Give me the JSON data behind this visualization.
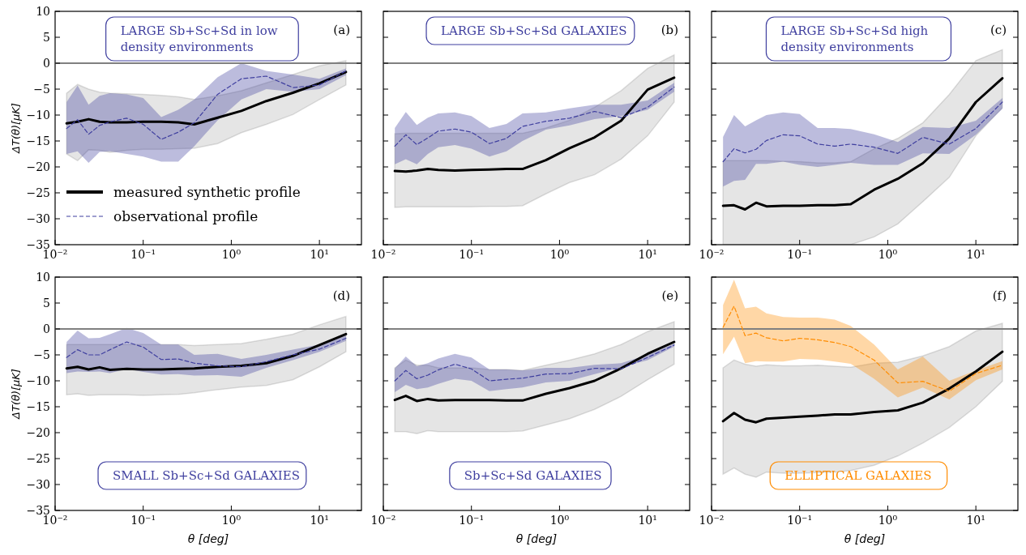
{
  "chart_data": [
    {
      "type": "line",
      "log": "x",
      "title": "LARGE Sb+Sc+Sd in low density environments",
      "annotations": [
        "(a)"
      ],
      "ylabel": "ΔT(θ)[μK]",
      "legend": "bottom left",
      "x": [
        0.0135,
        0.018,
        0.024,
        0.032,
        0.042,
        0.065,
        0.1,
        0.16,
        0.25,
        0.38,
        0.7,
        1.3,
        2.5,
        5,
        10,
        20
      ],
      "xlim": [
        0.01,
        30
      ],
      "xticks": [
        {
          "value": 0.01,
          "label": "10⁻²"
        },
        {
          "value": 0.1,
          "label": "10⁻¹"
        },
        {
          "value": 1,
          "label": "10⁰"
        },
        {
          "value": 10,
          "label": "10¹"
        }
      ],
      "ylim": [
        -35,
        10
      ],
      "yticks": [
        -35,
        -30,
        -25,
        -20,
        -15,
        -10,
        -5,
        0,
        5,
        10
      ],
      "ref_lines": [
        {
          "axis": "y",
          "value": 0,
          "color": "#808080"
        }
      ],
      "series": [
        {
          "name": "measured synthetic profile",
          "color": "#000000",
          "line_style": "solid",
          "values": [
            -11.6,
            -11.3,
            -10.8,
            -11.3,
            -11.4,
            -11.4,
            -11.3,
            -11.3,
            -11.4,
            -11.8,
            -10.5,
            -9.2,
            -7.3,
            -5.7,
            -3.9,
            -1.7
          ],
          "lower": [
            -17.5,
            -18.8,
            -16.7,
            -16.8,
            -17.2,
            -16.8,
            -16.6,
            -16.6,
            -16.5,
            -16.4,
            -15.5,
            -13.4,
            -11.8,
            -9.9,
            -7,
            -4.2
          ],
          "upper": [
            -5.8,
            -4.1,
            -5,
            -5.6,
            -5.8,
            -5.9,
            -6,
            -6.2,
            -6.5,
            -7,
            -6.3,
            -5.3,
            -3.8,
            -2.2,
            -0.5,
            0.5
          ]
        },
        {
          "name": "observational profile",
          "color": "#3f3f9f",
          "line_style": "dashed",
          "values": [
            -12.6,
            -10.9,
            -13.7,
            -12,
            -11.3,
            -10.6,
            -11.8,
            -14.7,
            -13.3,
            -11.5,
            -6,
            -3,
            -2.5,
            -4.7,
            -4.2,
            -1.5
          ],
          "lower": [
            -17.5,
            -17,
            -19.2,
            -17.1,
            -17,
            -17.5,
            -18,
            -19,
            -19,
            -16,
            -11,
            -7,
            -5,
            -5.5,
            -5,
            -2.3
          ],
          "upper": [
            -7.5,
            -4.3,
            -8,
            -6.3,
            -5.8,
            -6,
            -6.7,
            -10.4,
            -9,
            -7,
            -2.7,
            0,
            -1.5,
            -2.2,
            -3,
            -1
          ]
        }
      ]
    },
    {
      "type": "line",
      "log": "x",
      "title": "LARGE Sb+Sc+Sd GALAXIES",
      "annotations": [
        "(b)"
      ],
      "tick_labels": "x",
      "x": [
        0.0135,
        0.018,
        0.024,
        0.032,
        0.042,
        0.065,
        0.1,
        0.16,
        0.25,
        0.38,
        0.7,
        1.3,
        2.5,
        5,
        10,
        20
      ],
      "xlim": [
        0.01,
        30
      ],
      "xticks": [
        {
          "value": 0.01,
          "label": "10⁻²"
        },
        {
          "value": 0.1,
          "label": "10⁻¹"
        },
        {
          "value": 1,
          "label": "10⁰"
        },
        {
          "value": 10,
          "label": "10¹"
        }
      ],
      "ylim": [
        -35,
        10
      ],
      "yticks": [
        -35,
        -30,
        -25,
        -20,
        -15,
        -10,
        -5,
        0,
        5,
        10
      ],
      "ref_lines": [
        {
          "axis": "y",
          "value": 0,
          "color": "#808080"
        }
      ],
      "series": [
        {
          "color": "#000000",
          "line_style": "solid",
          "values": [
            -20.8,
            -20.9,
            -20.7,
            -20.4,
            -20.6,
            -20.7,
            -20.6,
            -20.5,
            -20.4,
            -20.4,
            -18.7,
            -16.4,
            -14.3,
            -11.1,
            -5.1,
            -2.8
          ],
          "lower": [
            -27.8,
            -27.7,
            -27.7,
            -27.7,
            -27.7,
            -27.7,
            -27.7,
            -27.6,
            -27.6,
            -27.5,
            -25.2,
            -23,
            -21.5,
            -18.5,
            -14,
            -7.5
          ],
          "upper": [
            -13.6,
            -13.5,
            -13.5,
            -13.5,
            -13.5,
            -13.5,
            -13.5,
            -13.5,
            -13.5,
            -13.5,
            -12.5,
            -11,
            -8.5,
            -5.3,
            -1,
            1.6
          ]
        },
        {
          "color": "#3f3f9f",
          "line_style": "dashed",
          "values": [
            -16,
            -13.8,
            -15.7,
            -14.4,
            -13.1,
            -12.7,
            -13.3,
            -15.5,
            -14.5,
            -12.2,
            -11.2,
            -10.6,
            -9.3,
            -10.5,
            -8.5,
            -4.6
          ],
          "lower": [
            -19.5,
            -18.5,
            -19.5,
            -17.5,
            -16.2,
            -15.8,
            -16.5,
            -18,
            -17,
            -15,
            -12.8,
            -12,
            -10.8,
            -10.2,
            -9,
            -5.5
          ],
          "upper": [
            -12.5,
            -9.4,
            -11.9,
            -10.5,
            -9.7,
            -9.5,
            -10.2,
            -12.5,
            -11.7,
            -9.7,
            -9.5,
            -8.7,
            -8,
            -8,
            -7.2,
            -3.8
          ]
        }
      ]
    },
    {
      "type": "line",
      "log": "x",
      "title": "LARGE Sb+Sc+Sd high density environments",
      "annotations": [
        "(c)"
      ],
      "tick_labels": "x",
      "x": [
        0.0135,
        0.018,
        0.024,
        0.032,
        0.042,
        0.065,
        0.1,
        0.16,
        0.25,
        0.38,
        0.7,
        1.3,
        2.5,
        5,
        10,
        20
      ],
      "xlim": [
        0.01,
        30
      ],
      "xticks": [
        {
          "value": 0.01,
          "label": "10⁻²"
        },
        {
          "value": 0.1,
          "label": "10⁻¹"
        },
        {
          "value": 1,
          "label": "10⁰"
        },
        {
          "value": 10,
          "label": "10¹"
        }
      ],
      "ylim": [
        -35,
        10
      ],
      "yticks": [
        -35,
        -30,
        -25,
        -20,
        -15,
        -10,
        -5,
        0,
        5,
        10
      ],
      "ref_lines": [
        {
          "axis": "y",
          "value": 0,
          "color": "#808080"
        }
      ],
      "series": [
        {
          "color": "#000000",
          "line_style": "solid",
          "values": [
            -27.5,
            -27.4,
            -28.2,
            -26.9,
            -27.6,
            -27.5,
            -27.5,
            -27.4,
            -27.4,
            -27.2,
            -24.4,
            -22.3,
            -19.3,
            -14.5,
            -7.5,
            -2.9
          ],
          "lower": [
            -35,
            -35,
            -35,
            -35,
            -35,
            -35,
            -35,
            -35,
            -35,
            -35,
            -33.5,
            -31,
            -26.7,
            -22,
            -14,
            -8.6
          ],
          "upper": [
            -18.8,
            -18.8,
            -18.8,
            -18.8,
            -18.8,
            -18.9,
            -19,
            -19.2,
            -19.2,
            -19,
            -16.5,
            -14.5,
            -11.5,
            -6,
            0.5,
            2.6
          ]
        },
        {
          "color": "#3f3f9f",
          "line_style": "dashed",
          "values": [
            -19,
            -16.5,
            -17.3,
            -16.6,
            -14.9,
            -13.8,
            -14,
            -15.6,
            -16,
            -15.6,
            -16.2,
            -17.4,
            -14.3,
            -15.6,
            -12.6,
            -7.5
          ],
          "lower": [
            -23.8,
            -22.7,
            -22.5,
            -19.4,
            -19.4,
            -19,
            -19.6,
            -20,
            -19.6,
            -19.2,
            -19.6,
            -19.6,
            -17.4,
            -17.5,
            -13.8,
            -8.8
          ],
          "upper": [
            -14.2,
            -10,
            -12.2,
            -11,
            -10,
            -9.5,
            -9.8,
            -12.5,
            -12.5,
            -12.7,
            -13.7,
            -15.2,
            -12.3,
            -12.5,
            -11.1,
            -6.7
          ]
        }
      ]
    },
    {
      "type": "line",
      "log": "x",
      "title": "SMALL Sb+Sc+Sd GALAXIES",
      "annotations": [
        "(d)"
      ],
      "xlabel": "θ   [deg]",
      "ylabel": "ΔT(θ)[μK]",
      "x": [
        0.0135,
        0.018,
        0.024,
        0.032,
        0.042,
        0.065,
        0.1,
        0.16,
        0.25,
        0.38,
        0.7,
        1.3,
        2.5,
        5,
        10,
        20
      ],
      "xlim": [
        0.01,
        30
      ],
      "xticks": [
        {
          "value": 0.01,
          "label": "10⁻²"
        },
        {
          "value": 0.1,
          "label": "10⁻¹"
        },
        {
          "value": 1,
          "label": "10⁰"
        },
        {
          "value": 10,
          "label": "10¹"
        }
      ],
      "ylim": [
        -35,
        10
      ],
      "yticks": [
        -35,
        -30,
        -25,
        -20,
        -15,
        -10,
        -5,
        0,
        5,
        10
      ],
      "ref_lines": [
        {
          "axis": "y",
          "value": 0,
          "color": "#808080"
        }
      ],
      "series": [
        {
          "color": "#000000",
          "line_style": "solid",
          "values": [
            -7.6,
            -7.3,
            -7.8,
            -7.4,
            -7.9,
            -7.7,
            -7.8,
            -7.8,
            -7.7,
            -7.6,
            -7.3,
            -7.1,
            -6.6,
            -5.2,
            -3.1,
            -1
          ],
          "lower": [
            -12.7,
            -12.5,
            -12.8,
            -12.7,
            -12.7,
            -12.7,
            -12.8,
            -12.7,
            -12.6,
            -12.3,
            -11.7,
            -11.2,
            -10.9,
            -9.8,
            -7.3,
            -4.4
          ],
          "upper": [
            -3,
            -3,
            -3,
            -3,
            -3,
            -3,
            -3,
            -3,
            -3,
            -3.2,
            -3,
            -2.8,
            -2,
            -1,
            0.8,
            2.4
          ]
        },
        {
          "color": "#3f3f9f",
          "line_style": "dashed",
          "values": [
            -5.5,
            -4,
            -5,
            -5,
            -4,
            -2.5,
            -3.5,
            -5.9,
            -5.8,
            -6.6,
            -7.1,
            -7.3,
            -6.3,
            -5,
            -3.9,
            -1.8
          ],
          "lower": [
            -8.5,
            -8.2,
            -8.3,
            -8.2,
            -8.5,
            -7.7,
            -8.3,
            -8.8,
            -8.7,
            -9,
            -8.9,
            -9.2,
            -7.5,
            -6,
            -4.4,
            -2.3
          ],
          "upper": [
            -2.5,
            -0.3,
            -1.8,
            -1.7,
            -1,
            0.2,
            -0.8,
            -3,
            -3,
            -5,
            -4.8,
            -5.8,
            -5,
            -4,
            -3,
            -1.3
          ]
        }
      ]
    },
    {
      "type": "line",
      "log": "x",
      "title": "Sb+Sc+Sd GALAXIES",
      "annotations": [
        "(e)"
      ],
      "xlabel": "θ   [deg]",
      "tick_labels": "x",
      "x": [
        0.0135,
        0.018,
        0.024,
        0.032,
        0.042,
        0.065,
        0.1,
        0.16,
        0.25,
        0.38,
        0.7,
        1.3,
        2.5,
        5,
        10,
        20
      ],
      "xlim": [
        0.01,
        30
      ],
      "xticks": [
        {
          "value": 0.01,
          "label": "10⁻²"
        },
        {
          "value": 0.1,
          "label": "10⁻¹"
        },
        {
          "value": 1,
          "label": "10⁰"
        },
        {
          "value": 10,
          "label": "10¹"
        }
      ],
      "ylim": [
        -35,
        10
      ],
      "yticks": [
        -35,
        -30,
        -25,
        -20,
        -15,
        -10,
        -5,
        0,
        5,
        10
      ],
      "ref_lines": [
        {
          "axis": "y",
          "value": 0,
          "color": "#808080"
        }
      ],
      "series": [
        {
          "color": "#000000",
          "line_style": "solid",
          "values": [
            -13.7,
            -12.9,
            -13.9,
            -13.5,
            -13.8,
            -13.7,
            -13.7,
            -13.7,
            -13.8,
            -13.8,
            -12.5,
            -11.4,
            -10,
            -7.6,
            -4.8,
            -2.5
          ],
          "lower": [
            -19.8,
            -19.8,
            -20.2,
            -19.6,
            -19.8,
            -19.8,
            -19.8,
            -19.8,
            -19.8,
            -19.7,
            -18.5,
            -17.3,
            -15.5,
            -13,
            -9.8,
            -6.8
          ],
          "upper": [
            -7.5,
            -6,
            -7,
            -7,
            -7.5,
            -7.5,
            -7.5,
            -7.8,
            -7.8,
            -8,
            -7,
            -6,
            -4.8,
            -3,
            -0.5,
            1.4
          ]
        },
        {
          "color": "#3f3f9f",
          "line_style": "dashed",
          "values": [
            -10,
            -8,
            -9.6,
            -8.9,
            -7.9,
            -6.8,
            -7.7,
            -10,
            -9.7,
            -9.5,
            -8.7,
            -8.6,
            -7.6,
            -7.7,
            -5.5,
            -3.1
          ],
          "lower": [
            -12.2,
            -10.8,
            -11.6,
            -11.3,
            -10.6,
            -9.6,
            -10,
            -12,
            -11.6,
            -11.3,
            -10.3,
            -10,
            -8.7,
            -7.4,
            -6,
            -3.4
          ],
          "upper": [
            -7.6,
            -5.3,
            -7.2,
            -6.6,
            -5.7,
            -4.8,
            -5.5,
            -7.8,
            -7.8,
            -8,
            -7.5,
            -7.5,
            -6.9,
            -6.6,
            -5,
            -2.8
          ]
        }
      ]
    },
    {
      "type": "line",
      "log": "x",
      "title": "ELLIPTICAL GALAXIES",
      "annotations": [
        "(f)"
      ],
      "xlabel": "θ   [deg]",
      "tick_labels": "x",
      "x": [
        0.0135,
        0.018,
        0.024,
        0.032,
        0.042,
        0.065,
        0.1,
        0.16,
        0.25,
        0.38,
        0.7,
        1.3,
        2.5,
        5,
        10,
        20
      ],
      "xlim": [
        0.01,
        30
      ],
      "xticks": [
        {
          "value": 0.01,
          "label": "10⁻²"
        },
        {
          "value": 0.1,
          "label": "10⁻¹"
        },
        {
          "value": 1,
          "label": "10⁰"
        },
        {
          "value": 10,
          "label": "10¹"
        }
      ],
      "ylim": [
        -35,
        10
      ],
      "yticks": [
        -35,
        -30,
        -25,
        -20,
        -15,
        -10,
        -5,
        0,
        5,
        10
      ],
      "ref_lines": [
        {
          "axis": "y",
          "value": 0,
          "color": "#808080"
        }
      ],
      "series": [
        {
          "color": "#000000",
          "line_style": "solid",
          "values": [
            -17.8,
            -16.2,
            -17.5,
            -18,
            -17.3,
            -17.1,
            -16.9,
            -16.7,
            -16.5,
            -16.5,
            -16,
            -15.7,
            -14.2,
            -11.5,
            -8.2,
            -4.4
          ],
          "lower": [
            -28,
            -26.8,
            -28,
            -28.6,
            -27.6,
            -27.8,
            -27.8,
            -27.7,
            -27.6,
            -27.3,
            -26.3,
            -24.5,
            -22,
            -19,
            -15,
            -10.1
          ],
          "upper": [
            -7.5,
            -6,
            -6.8,
            -7.2,
            -6.9,
            -7.1,
            -7.1,
            -7,
            -7.2,
            -7.4,
            -6.6,
            -6.4,
            -5.2,
            -3.4,
            -0.4,
            1.1
          ]
        },
        {
          "color": "#ff8c00",
          "line_style": "dashed",
          "values": [
            0.3,
            4.4,
            -1.3,
            -0.8,
            -1.7,
            -2.3,
            -1.8,
            -2.1,
            -2.6,
            -3.4,
            -6,
            -10.4,
            -10.1,
            -12,
            -8.6,
            -7
          ],
          "lower": [
            -4.9,
            -1.5,
            -6.6,
            -6.2,
            -6.3,
            -6.3,
            -5.8,
            -5.9,
            -6.3,
            -6.7,
            -9.6,
            -13.2,
            -11.3,
            -13.6,
            -9.9,
            -7.8
          ],
          "upper": [
            4.6,
            9.5,
            4,
            4.3,
            3,
            2.3,
            2.2,
            2.2,
            1.8,
            0.6,
            -3,
            -7.8,
            -5.3,
            -10,
            -8,
            -6.2
          ]
        }
      ]
    }
  ]
}
